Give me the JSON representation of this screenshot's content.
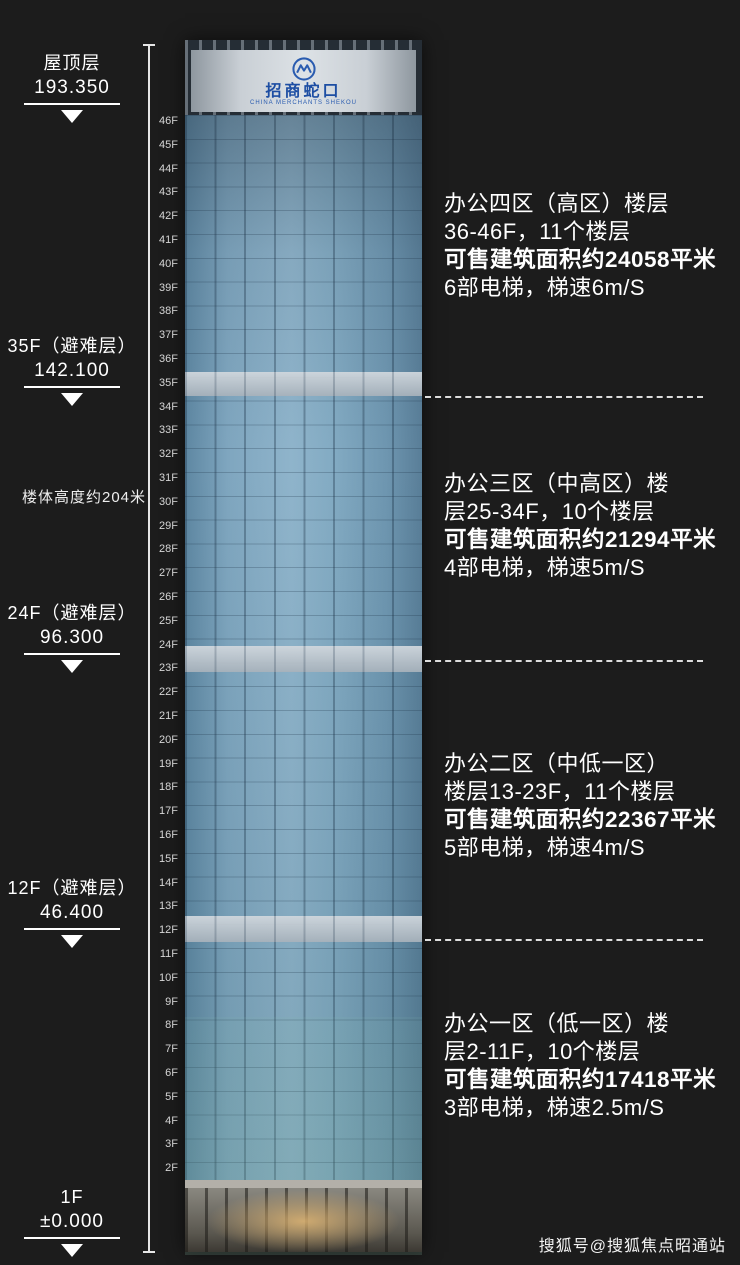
{
  "colors": {
    "background": "#1c1c1c",
    "logo_blue": "#1d4ea3",
    "glass_blue": "#8fb4cb",
    "text": "#ffffff"
  },
  "height_note": "楼体高度约204米",
  "left_markers": [
    {
      "label": "屋顶层",
      "value": "193.350"
    },
    {
      "label": "35F（避难层）",
      "value": "142.100"
    },
    {
      "label": "24F（避难层）",
      "value": "96.300"
    },
    {
      "label": "12F（避难层）",
      "value": "46.400"
    },
    {
      "label": "1F",
      "value": "±0.000"
    }
  ],
  "floor_labels": [
    "46F",
    "45F",
    "44F",
    "43F",
    "42F",
    "41F",
    "40F",
    "39F",
    "38F",
    "37F",
    "36F",
    "35F",
    "34F",
    "33F",
    "32F",
    "31F",
    "30F",
    "29F",
    "28F",
    "27F",
    "26F",
    "25F",
    "24F",
    "23F",
    "22F",
    "21F",
    "20F",
    "19F",
    "18F",
    "17F",
    "16F",
    "15F",
    "14F",
    "13F",
    "12F",
    "11F",
    "10F",
    "9F",
    "8F",
    "7F",
    "6F",
    "5F",
    "4F",
    "3F",
    "2F"
  ],
  "building": {
    "logo_text": "招商蛇口",
    "logo_subtext": "CHINA MERCHANTS SHEKOU"
  },
  "zones": [
    {
      "line1": "办公四区（高区）楼层",
      "line2": "36-46F，11个楼层",
      "area": "可售建筑面积约24058平米",
      "elevators": "6部电梯，梯速6m/S"
    },
    {
      "line1": "办公三区（中高区）楼",
      "line2": "层25-34F，10个楼层",
      "area": "可售建筑面积约21294平米",
      "elevators": "4部电梯，梯速5m/S"
    },
    {
      "line1": "办公二区（中低一区）",
      "line2": "楼层13-23F，11个楼层",
      "area": "可售建筑面积约22367平米",
      "elevators": "5部电梯，梯速4m/S"
    },
    {
      "line1": "办公一区（低一区）楼",
      "line2": "层2-11F，10个楼层",
      "area": "可售建筑面积约17418平米",
      "elevators": "3部电梯，梯速2.5m/S"
    }
  ],
  "watermark": "搜狐号@搜狐焦点昭通站"
}
